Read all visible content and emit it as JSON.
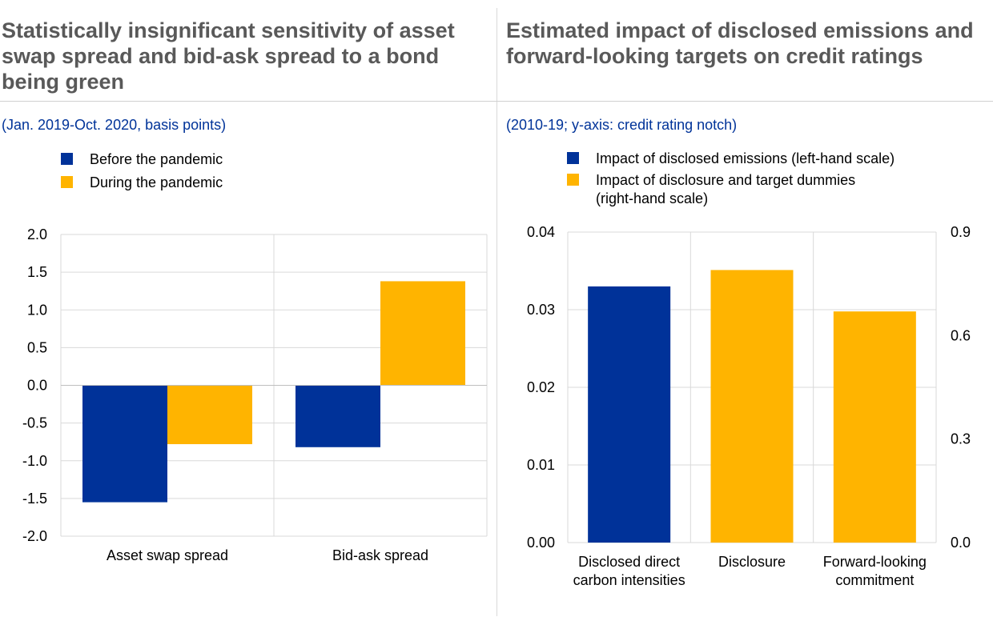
{
  "colors": {
    "blue": "#003299",
    "yellow": "#FFB400",
    "title_gray": "#595959",
    "subtitle_blue": "#003399",
    "grid": "#d9d9d9"
  },
  "left_panel": {
    "title": "Statistically insignificant sensitivity of asset swap spread and bid-ask spread to a bond being green",
    "subtitle": "(Jan. 2019-Oct. 2020, basis points)",
    "legend": [
      {
        "label": "Before the pandemic",
        "color": "#003299"
      },
      {
        "label": "During the pandemic",
        "color": "#FFB400"
      }
    ]
  },
  "right_panel": {
    "title": "Estimated impact of disclosed emissions and forward-looking targets on credit ratings",
    "subtitle": "(2010-19; y-axis: credit rating notch)",
    "legend": [
      {
        "label": "Impact of disclosed emissions (left-hand scale)",
        "color": "#003299"
      },
      {
        "label": "Impact of disclosure and target dummies",
        "label_line2": "(right-hand scale)",
        "color": "#FFB400"
      }
    ]
  },
  "chart_data": [
    {
      "type": "bar",
      "title": "Statistically insignificant sensitivity of asset swap spread and bid-ask spread to a bond being green",
      "categories": [
        "Asset swap spread",
        "Bid-ask spread"
      ],
      "series": [
        {
          "name": "Before the pandemic",
          "values": [
            -1.55,
            -0.82
          ]
        },
        {
          "name": "During the pandemic",
          "values": [
            -0.78,
            1.38
          ]
        }
      ],
      "ylim": [
        -2.0,
        2.0
      ],
      "yticks": [
        "2.0",
        "1.5",
        "1.0",
        "0.5",
        "0.0",
        "-0.5",
        "-1.0",
        "-1.5",
        "-2.0"
      ],
      "ytick_values": [
        2.0,
        1.5,
        1.0,
        0.5,
        0.0,
        -0.5,
        -1.0,
        -1.5,
        -2.0
      ],
      "grid": true,
      "legend_position": "top-left"
    },
    {
      "type": "bar",
      "title": "Estimated impact of disclosed emissions and forward-looking targets on credit ratings",
      "categories": [
        [
          "Disclosed direct",
          "carbon intensities"
        ],
        [
          "Disclosure"
        ],
        [
          "Forward-looking",
          "commitment"
        ]
      ],
      "series": [
        {
          "name": "Impact of disclosed emissions (left-hand scale)",
          "axis": "left",
          "values": [
            0.033,
            null,
            null
          ]
        },
        {
          "name": "Impact of disclosure and target dummies (right-hand scale)",
          "axis": "right",
          "values": [
            null,
            0.79,
            0.67
          ]
        }
      ],
      "ylim_left": [
        0.0,
        0.04
      ],
      "ylim_right": [
        0.0,
        0.9
      ],
      "yticks_left": [
        "0.04",
        "0.03",
        "0.02",
        "0.01",
        "0.00"
      ],
      "yticks_left_values": [
        0.04,
        0.03,
        0.02,
        0.01,
        0.0
      ],
      "yticks_right": [
        "0.9",
        "0.6",
        "0.3",
        "0.0"
      ],
      "yticks_right_values": [
        0.9,
        0.6,
        0.3,
        0.0
      ],
      "grid": true,
      "legend_position": "top-left"
    }
  ]
}
